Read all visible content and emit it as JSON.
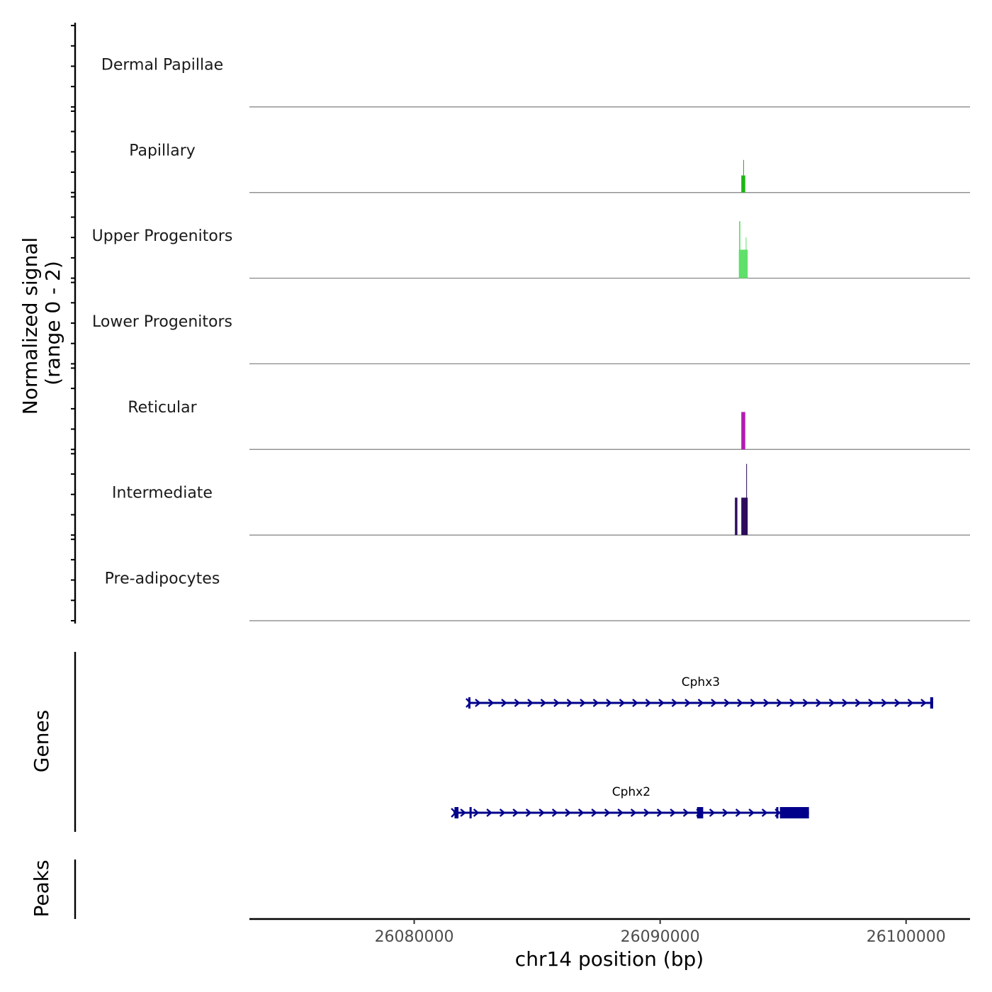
{
  "chart_data": {
    "type": "coverage",
    "chromosome": "chr14",
    "x_range": [
      26073300,
      26102600
    ],
    "xlabel": "chr14 position (bp)",
    "x_ticks": [
      26080000,
      26090000,
      26100000
    ],
    "x_tick_labels": [
      "26080000",
      "26090000",
      "26100000"
    ],
    "coverage_ylabel_line1": "Normalized signal",
    "coverage_ylabel_line2": "(range 0 - 2)",
    "y_range": [
      0,
      2
    ],
    "tracks": [
      {
        "name": "Dermal Papillae",
        "color": "#3a0f9e",
        "segments": []
      },
      {
        "name": "Papillary",
        "color": "#1fb514",
        "segments": [
          {
            "start": 26093300,
            "end": 26093460,
            "value": 0.42
          },
          {
            "start": 26093380,
            "end": 26093400,
            "value": 0.8
          }
        ]
      },
      {
        "name": "Upper Progenitors",
        "color": "#5fe06a",
        "segments": [
          {
            "start": 26093200,
            "end": 26093560,
            "value": 0.7
          },
          {
            "start": 26093210,
            "end": 26093260,
            "value": 1.4
          },
          {
            "start": 26093480,
            "end": 26093500,
            "value": 1.0
          }
        ]
      },
      {
        "name": "Lower Progenitors",
        "color": "#2b9ad8",
        "segments": []
      },
      {
        "name": "Reticular",
        "color": "#b31bb4",
        "segments": [
          {
            "start": 26093300,
            "end": 26093460,
            "value": 0.92
          }
        ]
      },
      {
        "name": "Intermediate",
        "color": "#2e0c5c",
        "segments": [
          {
            "start": 26093040,
            "end": 26093140,
            "value": 0.92
          },
          {
            "start": 26093300,
            "end": 26093560,
            "value": 0.92
          },
          {
            "start": 26093500,
            "end": 26093530,
            "value": 1.75
          }
        ]
      },
      {
        "name": "Pre-adipocytes",
        "color": "#e07b2b",
        "segments": []
      }
    ],
    "genes_label": "Genes",
    "genes": [
      {
        "name": "Cphx3",
        "strand": "+",
        "start": 26082200,
        "end": 26101100,
        "exons": [
          [
            26082200,
            26082260
          ],
          [
            26100980,
            26101100
          ]
        ]
      },
      {
        "name": "Cphx2",
        "strand": "+",
        "start": 26081600,
        "end": 26096050,
        "exons": [
          [
            26081640,
            26081800
          ],
          [
            26082250,
            26082300
          ],
          [
            26091500,
            26091750
          ],
          [
            26094720,
            26094800
          ],
          [
            26094870,
            26096050
          ]
        ]
      }
    ],
    "peaks_label": "Peaks",
    "peaks": []
  }
}
